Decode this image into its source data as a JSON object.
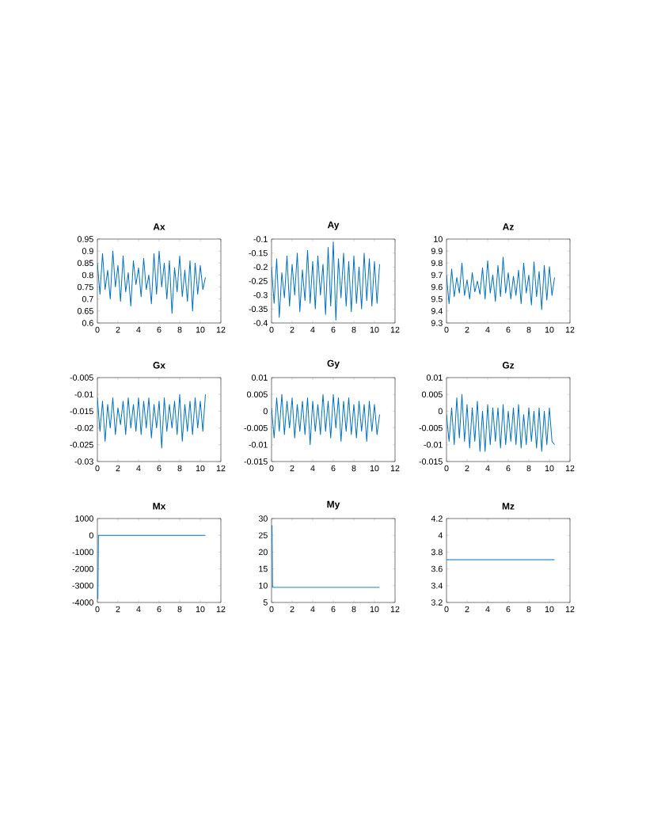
{
  "chart_data": [
    {
      "type": "line",
      "title": "Ax",
      "color": "#0072bd",
      "xlim": [
        0,
        12
      ],
      "xticks": [
        0,
        2,
        4,
        6,
        8,
        10,
        12
      ],
      "ylim": [
        0.6,
        0.95
      ],
      "yticks": [
        0.6,
        0.65,
        0.7,
        0.75,
        0.8,
        0.85,
        0.9,
        0.95
      ],
      "x": [
        0,
        0.25,
        0.5,
        0.75,
        1,
        1.25,
        1.5,
        1.75,
        2,
        2.25,
        2.5,
        2.75,
        3,
        3.25,
        3.5,
        3.75,
        4,
        4.25,
        4.5,
        4.75,
        5,
        5.25,
        5.5,
        5.75,
        6,
        6.25,
        6.5,
        6.75,
        7,
        7.25,
        7.5,
        7.75,
        8,
        8.25,
        8.5,
        8.75,
        9,
        9.25,
        9.5,
        9.75,
        10,
        10.25,
        10.5
      ],
      "values": [
        0.85,
        0.72,
        0.89,
        0.74,
        0.82,
        0.7,
        0.9,
        0.75,
        0.84,
        0.69,
        0.88,
        0.73,
        0.81,
        0.67,
        0.86,
        0.76,
        0.83,
        0.71,
        0.87,
        0.74,
        0.8,
        0.68,
        0.89,
        0.72,
        0.9,
        0.75,
        0.85,
        0.7,
        0.86,
        0.64,
        0.83,
        0.73,
        0.88,
        0.71,
        0.82,
        0.69,
        0.86,
        0.65,
        0.85,
        0.72,
        0.84,
        0.74,
        0.79
      ]
    },
    {
      "type": "line",
      "title": "Ay",
      "color": "#0072bd",
      "xlim": [
        0,
        12
      ],
      "xticks": [
        0,
        2,
        4,
        6,
        8,
        10,
        12
      ],
      "ylim": [
        -0.4,
        -0.1
      ],
      "yticks": [
        -0.4,
        -0.35,
        -0.3,
        -0.25,
        -0.2,
        -0.15,
        -0.1
      ],
      "x": [
        0,
        0.25,
        0.5,
        0.75,
        1,
        1.25,
        1.5,
        1.75,
        2,
        2.25,
        2.5,
        2.75,
        3,
        3.25,
        3.5,
        3.75,
        4,
        4.25,
        4.5,
        4.75,
        5,
        5.25,
        5.5,
        5.75,
        6,
        6.25,
        6.5,
        6.75,
        7,
        7.25,
        7.5,
        7.75,
        8,
        8.25,
        8.5,
        8.75,
        9,
        9.25,
        9.5,
        9.75,
        10,
        10.25,
        10.5
      ],
      "values": [
        -0.2,
        -0.33,
        -0.17,
        -0.38,
        -0.22,
        -0.31,
        -0.16,
        -0.34,
        -0.19,
        -0.3,
        -0.15,
        -0.36,
        -0.21,
        -0.32,
        -0.14,
        -0.33,
        -0.18,
        -0.35,
        -0.16,
        -0.3,
        -0.19,
        -0.37,
        -0.13,
        -0.34,
        -0.11,
        -0.39,
        -0.17,
        -0.31,
        -0.15,
        -0.34,
        -0.18,
        -0.36,
        -0.16,
        -0.33,
        -0.2,
        -0.35,
        -0.15,
        -0.32,
        -0.17,
        -0.34,
        -0.18,
        -0.33,
        -0.19
      ]
    },
    {
      "type": "line",
      "title": "Az",
      "color": "#0072bd",
      "xlim": [
        0,
        12
      ],
      "xticks": [
        0,
        2,
        4,
        6,
        8,
        10,
        12
      ],
      "ylim": [
        9.3,
        10
      ],
      "yticks": [
        9.3,
        9.4,
        9.5,
        9.6,
        9.7,
        9.8,
        9.9,
        10
      ],
      "x": [
        0,
        0.25,
        0.5,
        0.75,
        1,
        1.25,
        1.5,
        1.75,
        2,
        2.25,
        2.5,
        2.75,
        3,
        3.25,
        3.5,
        3.75,
        4,
        4.25,
        4.5,
        4.75,
        5,
        5.25,
        5.5,
        5.75,
        6,
        6.25,
        6.5,
        6.75,
        7,
        7.25,
        7.5,
        7.75,
        8,
        8.25,
        8.5,
        8.75,
        9,
        9.25,
        9.5,
        9.75,
        10,
        10.25,
        10.5
      ],
      "values": [
        9.7,
        9.46,
        9.75,
        9.52,
        9.68,
        9.55,
        9.8,
        9.53,
        9.66,
        9.5,
        9.72,
        9.56,
        9.65,
        9.54,
        9.76,
        9.5,
        9.82,
        9.55,
        9.7,
        9.48,
        9.78,
        9.52,
        9.85,
        9.55,
        9.72,
        9.5,
        9.69,
        9.53,
        9.74,
        9.46,
        9.8,
        9.55,
        9.7,
        9.45,
        9.81,
        9.52,
        9.73,
        9.41,
        9.78,
        9.49,
        9.77,
        9.53,
        9.68
      ]
    },
    {
      "type": "line",
      "title": "Gx",
      "color": "#0072bd",
      "xlim": [
        0,
        12
      ],
      "xticks": [
        0,
        2,
        4,
        6,
        8,
        10,
        12
      ],
      "ylim": [
        -0.03,
        -0.005
      ],
      "yticks": [
        -0.03,
        -0.025,
        -0.02,
        -0.015,
        -0.01,
        -0.005
      ],
      "x": [
        0,
        0.25,
        0.5,
        0.75,
        1,
        1.25,
        1.5,
        1.75,
        2,
        2.25,
        2.5,
        2.75,
        3,
        3.25,
        3.5,
        3.75,
        4,
        4.25,
        4.5,
        4.75,
        5,
        5.25,
        5.5,
        5.75,
        6,
        6.25,
        6.5,
        6.75,
        7,
        7.25,
        7.5,
        7.75,
        8,
        8.25,
        8.5,
        8.75,
        9,
        9.25,
        9.5,
        9.75,
        10,
        10.25,
        10.5
      ],
      "values": [
        -0.011,
        -0.021,
        -0.012,
        -0.024,
        -0.013,
        -0.02,
        -0.011,
        -0.022,
        -0.014,
        -0.019,
        -0.012,
        -0.022,
        -0.011,
        -0.02,
        -0.013,
        -0.021,
        -0.011,
        -0.022,
        -0.012,
        -0.02,
        -0.011,
        -0.023,
        -0.013,
        -0.02,
        -0.012,
        -0.026,
        -0.011,
        -0.021,
        -0.013,
        -0.02,
        -0.012,
        -0.022,
        -0.01,
        -0.024,
        -0.013,
        -0.021,
        -0.012,
        -0.022,
        -0.011,
        -0.02,
        -0.012,
        -0.021,
        -0.01
      ]
    },
    {
      "type": "line",
      "title": "Gy",
      "color": "#0072bd",
      "xlim": [
        0,
        12
      ],
      "xticks": [
        0,
        2,
        4,
        6,
        8,
        10,
        12
      ],
      "ylim": [
        -0.015,
        0.01
      ],
      "yticks": [
        -0.015,
        -0.01,
        -0.005,
        0,
        0.005,
        0.01
      ],
      "x": [
        0,
        0.25,
        0.5,
        0.75,
        1,
        1.25,
        1.5,
        1.75,
        2,
        2.25,
        2.5,
        2.75,
        3,
        3.25,
        3.5,
        3.75,
        4,
        4.25,
        4.5,
        4.75,
        5,
        5.25,
        5.5,
        5.75,
        6,
        6.25,
        6.5,
        6.75,
        7,
        7.25,
        7.5,
        7.75,
        8,
        8.25,
        8.5,
        8.75,
        9,
        9.25,
        9.5,
        9.75,
        10,
        10.25,
        10.5
      ],
      "values": [
        0.001,
        -0.008,
        0.004,
        -0.006,
        0.005,
        -0.007,
        0.003,
        -0.005,
        0.004,
        -0.008,
        0.002,
        -0.006,
        0.003,
        -0.007,
        0.004,
        -0.01,
        0.003,
        -0.006,
        0.002,
        -0.007,
        0.005,
        -0.006,
        0.003,
        -0.008,
        0.005,
        -0.005,
        0.004,
        -0.009,
        0.003,
        -0.006,
        0.004,
        -0.007,
        0.002,
        -0.008,
        0.003,
        -0.006,
        0.002,
        -0.009,
        0.003,
        -0.006,
        0.002,
        -0.007,
        -0.001
      ]
    },
    {
      "type": "line",
      "title": "Gz",
      "color": "#0072bd",
      "xlim": [
        0,
        12
      ],
      "xticks": [
        0,
        2,
        4,
        6,
        8,
        10,
        12
      ],
      "ylim": [
        -0.015,
        0.01
      ],
      "yticks": [
        -0.015,
        -0.01,
        -0.005,
        0,
        0.005,
        0.01
      ],
      "x": [
        0,
        0.25,
        0.5,
        0.75,
        1,
        1.25,
        1.5,
        1.75,
        2,
        2.25,
        2.5,
        2.75,
        3,
        3.25,
        3.5,
        3.75,
        4,
        4.25,
        4.5,
        4.75,
        5,
        5.25,
        5.5,
        5.75,
        6,
        6.25,
        6.5,
        6.75,
        7,
        7.25,
        7.5,
        7.75,
        8,
        8.25,
        8.5,
        8.75,
        9,
        9.25,
        9.5,
        9.75,
        10,
        10.25,
        10.5
      ],
      "values": [
        -0.001,
        -0.009,
        0.001,
        -0.01,
        0.004,
        -0.008,
        0.005,
        -0.009,
        0.002,
        -0.011,
        0.001,
        -0.009,
        0.003,
        -0.012,
        0.0,
        -0.012,
        0.002,
        -0.01,
        0.001,
        -0.009,
        0.001,
        -0.011,
        0.002,
        -0.01,
        0.0,
        -0.009,
        0.001,
        -0.01,
        0.002,
        -0.011,
        -0.001,
        -0.01,
        0.001,
        -0.009,
        0.0,
        -0.011,
        0.001,
        -0.012,
        0.0,
        -0.01,
        0.001,
        -0.009,
        -0.01
      ]
    },
    {
      "type": "line",
      "title": "Mx",
      "color": "#0072bd",
      "xlim": [
        0,
        12
      ],
      "xticks": [
        0,
        2,
        4,
        6,
        8,
        10,
        12
      ],
      "ylim": [
        -4000,
        1000
      ],
      "yticks": [
        -4000,
        -3000,
        -2000,
        -1000,
        0,
        1000
      ],
      "x": [
        0.05,
        0.1,
        10.5
      ],
      "values": [
        -3800,
        0,
        0
      ]
    },
    {
      "type": "line",
      "title": "My",
      "color": "#0072bd",
      "xlim": [
        0,
        12
      ],
      "xticks": [
        0,
        2,
        4,
        6,
        8,
        10,
        12
      ],
      "ylim": [
        5,
        30
      ],
      "yticks": [
        5,
        10,
        15,
        20,
        25,
        30
      ],
      "x": [
        0.05,
        0.1,
        10.5
      ],
      "values": [
        28,
        9.5,
        9.5
      ]
    },
    {
      "type": "line",
      "title": "Mz",
      "color": "#0072bd",
      "xlim": [
        0,
        12
      ],
      "xticks": [
        0,
        2,
        4,
        6,
        8,
        10,
        12
      ],
      "ylim": [
        3.2,
        4.2
      ],
      "yticks": [
        3.2,
        3.4,
        3.6,
        3.8,
        4,
        4.2
      ],
      "x": [
        0,
        10.5
      ],
      "values": [
        3.71,
        3.71
      ]
    }
  ]
}
